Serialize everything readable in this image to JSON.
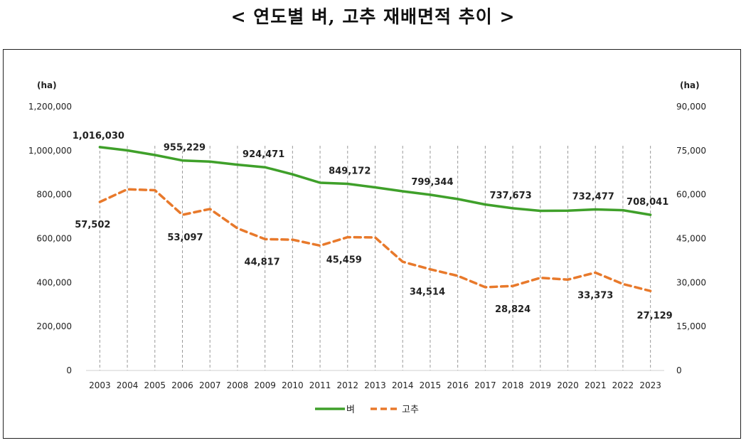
{
  "title": "< 연도별 벼, 고추 재배면적 추이 >",
  "chart_data": {
    "type": "line",
    "title": "< 연도별 벼, 고추 재배면적 추이 >",
    "y_unit_left": "(ha)",
    "y_unit_right": "(ha)",
    "x": [
      "2003",
      "2004",
      "2005",
      "2006",
      "2007",
      "2008",
      "2009",
      "2010",
      "2011",
      "2012",
      "2013",
      "2014",
      "2015",
      "2016",
      "2017",
      "2018",
      "2019",
      "2020",
      "2021",
      "2022",
      "2023"
    ],
    "ylim_left": [
      0,
      1200000
    ],
    "ylim_right": [
      0,
      90000
    ],
    "yticks_left": [
      "0",
      "200,000",
      "400,000",
      "600,000",
      "800,000",
      "1,000,000",
      "1,200,000"
    ],
    "yticks_right": [
      "0",
      "15,000",
      "30,000",
      "45,000",
      "60,000",
      "75,000",
      "90,000"
    ],
    "grid": "vertical dashed",
    "legend": "bottom",
    "series": [
      {
        "name": "벼",
        "axis": "left",
        "color": "#3fa02a",
        "style": "solid",
        "values": [
          1016030,
          1001000,
          980000,
          955229,
          950000,
          936000,
          924471,
          892000,
          854000,
          849172,
          833000,
          815000,
          799344,
          780000,
          755000,
          737673,
          726000,
          727000,
          732477,
          729000,
          708041
        ],
        "labels": [
          {
            "index": 0,
            "text": "1,016,030"
          },
          {
            "index": 3,
            "text": "955,229"
          },
          {
            "index": 6,
            "text": "924,471"
          },
          {
            "index": 9,
            "text": "849,172"
          },
          {
            "index": 12,
            "text": "799,344"
          },
          {
            "index": 15,
            "text": "737,673"
          },
          {
            "index": 18,
            "text": "732,477"
          },
          {
            "index": 20,
            "text": "708,041"
          }
        ]
      },
      {
        "name": "고추",
        "axis": "right",
        "color": "#e8792b",
        "style": "dashed",
        "values": [
          57502,
          61800,
          61500,
          53097,
          55100,
          48500,
          44817,
          44600,
          42600,
          45459,
          45400,
          37100,
          34514,
          32300,
          28400,
          28824,
          31600,
          31000,
          33373,
          29500,
          27129
        ],
        "labels": [
          {
            "index": 0,
            "text": "57,502"
          },
          {
            "index": 3,
            "text": "53,097"
          },
          {
            "index": 6,
            "text": "44,817"
          },
          {
            "index": 9,
            "text": "45,459"
          },
          {
            "index": 12,
            "text": "34,514"
          },
          {
            "index": 15,
            "text": "28,824"
          },
          {
            "index": 18,
            "text": "33,373"
          },
          {
            "index": 20,
            "text": "27,129"
          }
        ]
      }
    ]
  }
}
